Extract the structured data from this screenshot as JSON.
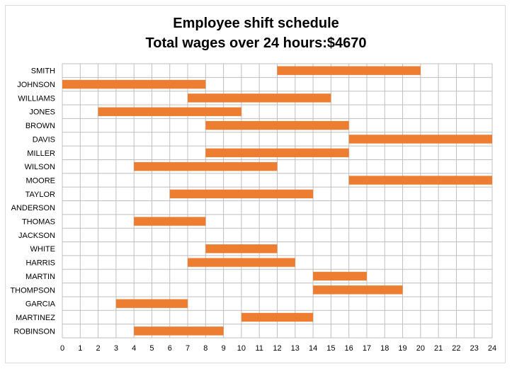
{
  "chart_data": {
    "type": "bar",
    "orientation": "horizontal-floating",
    "title": "Employee shift schedule",
    "subtitle": "Total wages over 24 hours:$4670",
    "xlim": [
      0,
      24
    ],
    "x_ticks": [
      0,
      1,
      2,
      3,
      4,
      5,
      6,
      7,
      8,
      9,
      10,
      11,
      12,
      13,
      14,
      15,
      16,
      17,
      18,
      19,
      20,
      21,
      22,
      23,
      24
    ],
    "grid": true,
    "legend": "none",
    "bar_color": "#ED7D31",
    "categories": [
      "SMITH",
      "JOHNSON",
      "WILLIAMS",
      "JONES",
      "BROWN",
      "DAVIS",
      "MILLER",
      "WILSON",
      "MOORE",
      "TAYLOR",
      "ANDERSON",
      "THOMAS",
      "JACKSON",
      "WHITE",
      "HARRIS",
      "MARTIN",
      "THOMPSON",
      "GARCIA",
      "MARTINEZ",
      "ROBINSON"
    ],
    "starts": [
      12,
      0,
      7,
      2,
      8,
      16,
      8,
      4,
      16,
      6,
      null,
      4,
      null,
      8,
      7,
      14,
      14,
      3,
      10,
      4
    ],
    "ends": [
      20,
      8,
      15,
      10,
      16,
      24,
      16,
      12,
      24,
      14,
      null,
      8,
      null,
      12,
      13,
      17,
      19,
      7,
      14,
      9
    ]
  }
}
